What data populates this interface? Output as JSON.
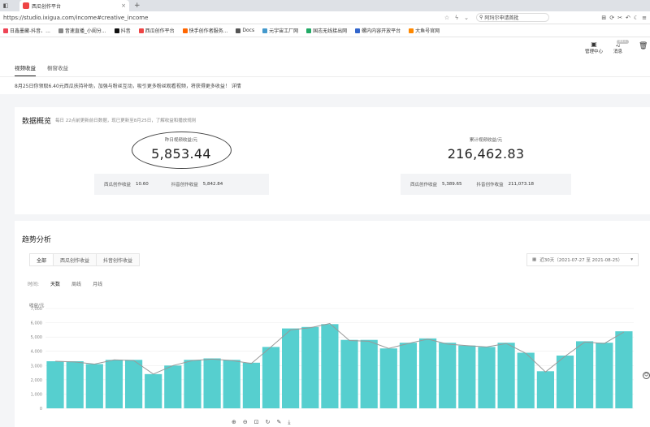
{
  "browser": {
    "tab_title": "西瓜创作平台",
    "tab_close": "×",
    "new_tab": "+",
    "url": "https://studio.ixigua.com/income#creative_income",
    "search_text": "阿玛尔申请首批",
    "bookmarks": [
      {
        "label": "日鑫墨藏-抖音、...",
        "color": "#e45"
      },
      {
        "label": "音速直播_小闺分...",
        "color": "#888"
      },
      {
        "label": "抖音",
        "color": "#111"
      },
      {
        "label": "西瓜创作平台",
        "color": "#e44"
      },
      {
        "label": "快手创作者服务...",
        "color": "#f60"
      },
      {
        "label": "Docs",
        "color": "#555"
      },
      {
        "label": "元宇宙工厂网",
        "color": "#49c"
      },
      {
        "label": "国志无线接出网",
        "color": "#2a6"
      },
      {
        "label": "螺内内容开放平台",
        "color": "#36c"
      },
      {
        "label": "大鱼号官网",
        "color": "#f80"
      }
    ]
  },
  "header": {
    "creator_center": "管理中心",
    "messages": "消息",
    "badge": "99+"
  },
  "tabs": [
    {
      "label": "视频收益",
      "active": true
    },
    {
      "label": "橱窗收益",
      "active": false
    }
  ],
  "notice": "8月25日你领取6.40元西瓜扶持补助，加强与粉丝互动，吸引更多粉丝观看视频，将获得更多收益！ 详情",
  "overview": {
    "title": "数据概览",
    "subtitle": "每日 22点前更新前日数据，现已更新至8月25日，了解收益和播放规则",
    "yesterday_label": "昨日视频收益/元",
    "yesterday_value": "5,853.44",
    "total_label": "累计视频收益/元",
    "total_value": "216,462.83",
    "left_sub": {
      "xigua_label": "西瓜创作收益",
      "xigua_value": "10.60",
      "douyin_label": "抖音创作收益",
      "douyin_value": "5,842.84"
    },
    "right_sub": {
      "xigua_label": "西瓜创作收益",
      "xigua_value": "5,389.65",
      "douyin_label": "抖音创作收益",
      "douyin_value": "211,073.18"
    }
  },
  "trend": {
    "title": "趋势分析",
    "tabs": [
      "全部",
      "西瓜创作收益",
      "抖音创作收益"
    ],
    "date_range": "近30天（2021-07-27 至 2021-08-25）",
    "time_label": "时间:",
    "time_options": [
      "天数",
      "周线",
      "月线"
    ],
    "y_unit": "收益/元"
  },
  "chart_data": {
    "type": "bar",
    "ylabel": "收益/元",
    "ylim": [
      0,
      7000
    ],
    "yticks": [
      "0",
      "1,000",
      "2,000",
      "3,000",
      "4,000",
      "5,000",
      "6,000",
      "7,000"
    ],
    "bar_color": "#56cfcf",
    "line_color": "#999999",
    "values": [
      3300,
      3300,
      3100,
      3400,
      3400,
      2400,
      3000,
      3400,
      3500,
      3400,
      3200,
      4300,
      5600,
      5700,
      5900,
      4800,
      4800,
      4200,
      4600,
      4900,
      4600,
      4400,
      4300,
      4600,
      3900,
      2600,
      3700,
      4700,
      4600,
      5400
    ],
    "line_values": [
      3300,
      3250,
      3100,
      3400,
      3350,
      2400,
      3000,
      3350,
      3450,
      3350,
      3150,
      4300,
      5500,
      5650,
      5950,
      4750,
      4700,
      4200,
      4550,
      4850,
      4500,
      4400,
      4300,
      4550,
      3850,
      2550,
      3650,
      4650,
      4550,
      5350
    ]
  }
}
